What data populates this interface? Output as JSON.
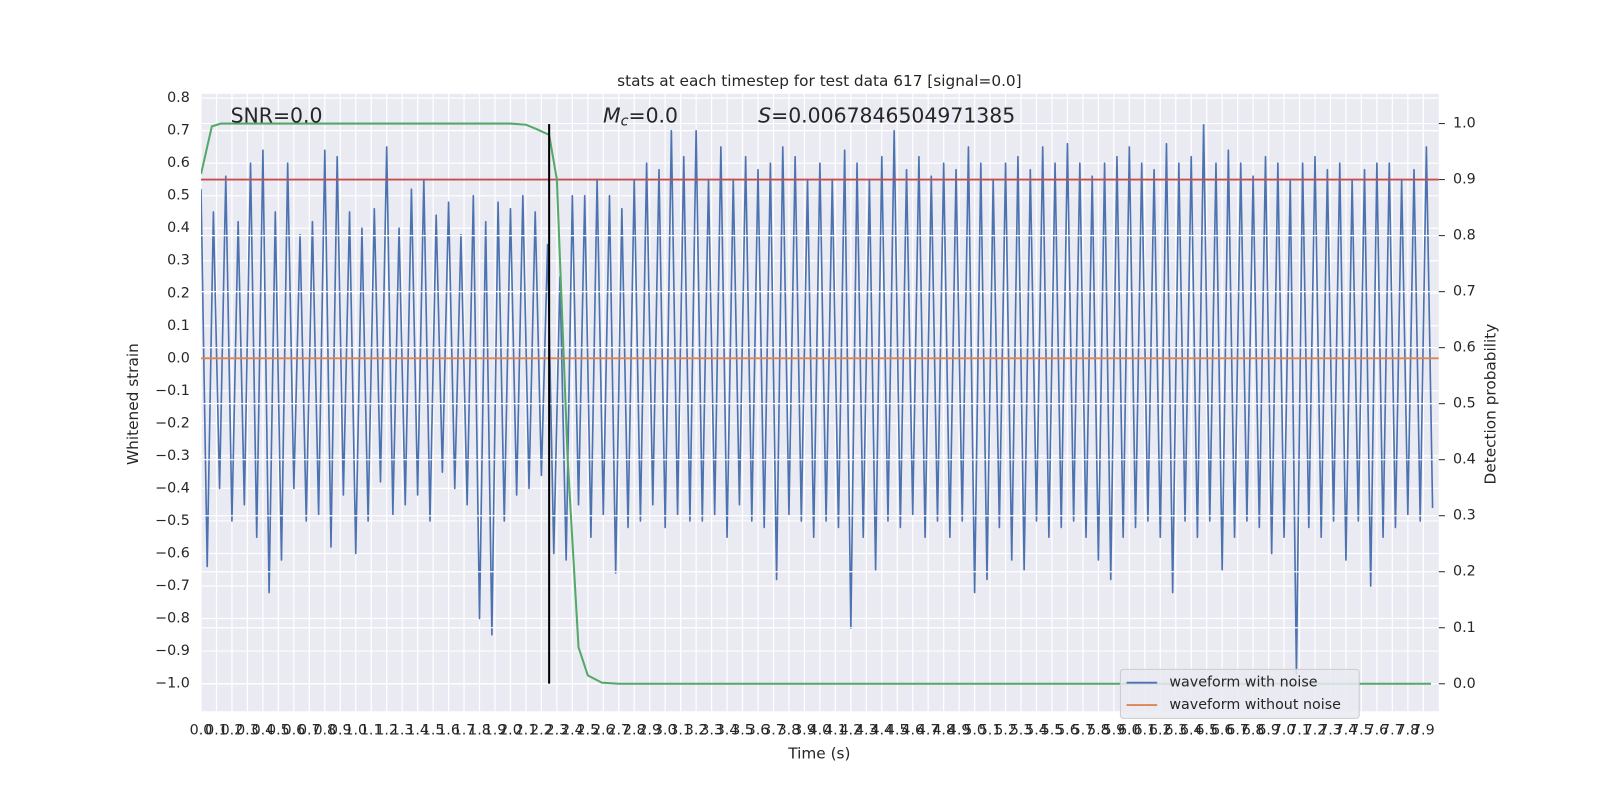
{
  "chart_data": {
    "type": "line",
    "title": "stats at each timestep for test data 617 [signal=0.0]",
    "xlabel": "Time (s)",
    "ylabel": "Whitened strain",
    "y2label": "Detection probability",
    "annotations": [
      {
        "text": "SNR=0.0"
      },
      {
        "symbol": "M",
        "subscript": "c",
        "text": "=0.0"
      },
      {
        "symbol": "S",
        "text": "=0.0067846504971385"
      }
    ],
    "grid": true,
    "y2grid": true,
    "legend": "lower right",
    "xlim": [
      0,
      8.0
    ],
    "ylim": [
      -1.085,
      0.813
    ],
    "y2lim": [
      -0.049,
      1.053
    ],
    "xticks": [
      {
        "value": 0,
        "label": "0.0"
      },
      0.1,
      0.2,
      0.3,
      0.4,
      0.5,
      0.6,
      0.7,
      0.8,
      0.9,
      {
        "value": 1,
        "label": "1.0"
      },
      1.1,
      1.2,
      1.3,
      1.4,
      1.5,
      1.6,
      1.7,
      1.8,
      1.9,
      {
        "value": 2,
        "label": "2.0"
      },
      2.1,
      2.2,
      2.3,
      2.4,
      2.5,
      2.6,
      2.7,
      2.8,
      2.9,
      {
        "value": 3,
        "label": "3.0"
      },
      3.1,
      3.2,
      3.3,
      3.4,
      3.5,
      3.6,
      3.7,
      3.8,
      3.9,
      {
        "value": 4,
        "label": "4.0"
      },
      4.1,
      4.2,
      4.3,
      4.4,
      4.5,
      4.6,
      4.7,
      4.8,
      4.9,
      {
        "value": 5,
        "label": "5.0"
      },
      5.1,
      5.2,
      5.3,
      5.4,
      5.5,
      5.6,
      5.7,
      5.8,
      5.9,
      {
        "value": 6,
        "label": "6.0"
      },
      6.1,
      6.2,
      6.3,
      6.4,
      6.5,
      6.6,
      6.7,
      6.8,
      6.9,
      {
        "value": 7,
        "label": "7.0"
      },
      7.1,
      7.2,
      7.3,
      7.4,
      7.5,
      7.6,
      7.7,
      7.8,
      7.9
    ],
    "yticks": [
      {
        "value": -1,
        "label": "−1.0"
      },
      {
        "value": -0.9,
        "label": "−0.9"
      },
      {
        "value": -0.8,
        "label": "−0.8"
      },
      {
        "value": -0.7,
        "label": "−0.7"
      },
      {
        "value": -0.6,
        "label": "−0.6"
      },
      {
        "value": -0.5,
        "label": "−0.5"
      },
      {
        "value": -0.4,
        "label": "−0.4"
      },
      {
        "value": -0.3,
        "label": "−0.3"
      },
      {
        "value": -0.2,
        "label": "−0.2"
      },
      {
        "value": -0.1,
        "label": "−0.1"
      },
      {
        "value": 0,
        "label": "0.0"
      },
      0.1,
      0.2,
      0.3,
      0.4,
      0.5,
      0.6,
      0.7,
      0.8
    ],
    "y2ticks": [
      {
        "value": 0,
        "label": "0.0"
      },
      0.1,
      0.2,
      0.3,
      0.4,
      0.5,
      0.6,
      0.7,
      0.8,
      0.9,
      {
        "value": 1,
        "label": "1.0"
      }
    ],
    "series": [
      {
        "name": "waveform with noise",
        "color": "#4c72b0",
        "x": [
          0,
          0.04,
          0.08,
          0.12,
          0.16,
          0.2,
          0.24,
          0.28,
          0.32,
          0.36,
          0.4,
          0.44,
          0.48,
          0.52,
          0.56,
          0.6,
          0.64,
          0.68,
          0.72,
          0.76,
          0.8,
          0.84,
          0.88,
          0.92,
          0.96,
          1,
          1.04,
          1.08,
          1.12,
          1.16,
          1.2,
          1.24,
          1.28,
          1.32,
          1.36,
          1.4,
          1.44,
          1.48,
          1.52,
          1.56,
          1.6,
          1.64,
          1.68,
          1.72,
          1.76,
          1.8,
          1.84,
          1.88,
          1.92,
          1.96,
          2,
          2.04,
          2.08,
          2.12,
          2.16,
          2.2,
          2.24,
          2.28,
          2.32,
          2.36,
          2.4,
          2.44,
          2.48,
          2.52,
          2.56,
          2.6,
          2.64,
          2.68,
          2.72,
          2.76,
          2.8,
          2.84,
          2.88,
          2.92,
          2.96,
          3,
          3.04,
          3.08,
          3.12,
          3.16,
          3.2,
          3.24,
          3.28,
          3.32,
          3.36,
          3.4,
          3.44,
          3.48,
          3.52,
          3.56,
          3.6,
          3.64,
          3.68,
          3.72,
          3.76,
          3.8,
          3.84,
          3.88,
          3.92,
          3.96,
          4,
          4.04,
          4.08,
          4.12,
          4.16,
          4.2,
          4.24,
          4.28,
          4.32,
          4.36,
          4.4,
          4.44,
          4.48,
          4.52,
          4.56,
          4.6,
          4.64,
          4.68,
          4.72,
          4.76,
          4.8,
          4.84,
          4.88,
          4.92,
          4.96,
          5,
          5.04,
          5.08,
          5.12,
          5.16,
          5.2,
          5.24,
          5.28,
          5.32,
          5.36,
          5.4,
          5.44,
          5.48,
          5.52,
          5.56,
          5.6,
          5.64,
          5.68,
          5.72,
          5.76,
          5.8,
          5.84,
          5.88,
          5.92,
          5.96,
          6,
          6.04,
          6.08,
          6.12,
          6.16,
          6.2,
          6.24,
          6.28,
          6.32,
          6.36,
          6.4,
          6.44,
          6.48,
          6.52,
          6.56,
          6.6,
          6.64,
          6.68,
          6.72,
          6.76,
          6.8,
          6.84,
          6.88,
          6.92,
          6.96,
          7,
          7.04,
          7.08,
          7.12,
          7.16,
          7.2,
          7.24,
          7.28,
          7.32,
          7.36,
          7.4,
          7.44,
          7.48,
          7.52,
          7.56,
          7.6,
          7.64,
          7.68,
          7.72,
          7.76,
          7.8,
          7.84,
          7.88,
          7.92,
          7.96
        ],
        "values": [
          0.52,
          -0.64,
          0.45,
          -0.4,
          0.56,
          -0.5,
          0.42,
          -0.45,
          0.6,
          -0.55,
          0.64,
          -0.72,
          0.45,
          -0.62,
          0.6,
          -0.4,
          0.38,
          -0.5,
          0.42,
          -0.48,
          0.64,
          -0.58,
          0.62,
          -0.42,
          0.45,
          -0.6,
          0.4,
          -0.5,
          0.46,
          -0.38,
          0.65,
          -0.48,
          0.4,
          -0.45,
          0.52,
          -0.42,
          0.55,
          -0.5,
          0.44,
          -0.35,
          0.48,
          -0.4,
          0.38,
          -0.45,
          0.5,
          -0.8,
          0.42,
          -0.85,
          0.48,
          -0.5,
          0.46,
          -0.42,
          0.5,
          -0.4,
          0.45,
          -0.36,
          0.35,
          -0.6,
          0.25,
          -0.62,
          0.5,
          -0.45,
          0.5,
          -0.55,
          0.55,
          -0.48,
          0.5,
          -0.66,
          0.46,
          -0.52,
          0.55,
          -0.5,
          0.6,
          -0.45,
          0.58,
          -0.52,
          0.7,
          -0.48,
          0.62,
          -0.5,
          0.7,
          -0.5,
          0.55,
          -0.48,
          0.65,
          -0.55,
          0.55,
          -0.45,
          0.62,
          -0.5,
          0.58,
          -0.52,
          0.6,
          -0.68,
          0.65,
          -0.48,
          0.62,
          -0.5,
          0.55,
          -0.55,
          0.6,
          -0.5,
          0.55,
          -0.52,
          0.64,
          -0.83,
          0.6,
          -0.55,
          0.55,
          -0.65,
          0.62,
          -0.5,
          0.7,
          -0.52,
          0.58,
          -0.48,
          0.62,
          -0.55,
          0.56,
          -0.5,
          0.6,
          -0.55,
          0.58,
          -0.5,
          0.65,
          -0.72,
          0.6,
          -0.68,
          0.55,
          -0.52,
          0.6,
          -0.62,
          0.62,
          -0.65,
          0.58,
          -0.5,
          0.65,
          -0.55,
          0.6,
          -0.52,
          0.66,
          -0.5,
          0.6,
          -0.55,
          0.56,
          -0.62,
          0.6,
          -0.68,
          0.62,
          -0.55,
          0.65,
          -0.52,
          0.6,
          -0.5,
          0.58,
          -0.55,
          0.66,
          -0.72,
          0.6,
          -0.5,
          0.62,
          -0.55,
          0.72,
          -0.5,
          0.6,
          -0.65,
          0.64,
          -0.55,
          0.6,
          -0.5,
          0.56,
          -0.52,
          0.62,
          -0.6,
          0.6,
          -0.55,
          0.55,
          -0.97,
          0.6,
          -0.52,
          0.62,
          -0.55,
          0.58,
          -0.5,
          0.6,
          -0.62,
          0.55,
          -0.5,
          0.58,
          -0.7,
          0.6,
          -0.55,
          0.6,
          -0.52,
          0.55,
          -0.48,
          0.58,
          -0.5,
          0.65,
          -0.46
        ]
      },
      {
        "name": "waveform without noise",
        "color": "#dd8452",
        "x": [
          0,
          8.0
        ],
        "values": [
          0,
          0
        ]
      }
    ],
    "detection_probability": {
      "color": "#55a868",
      "axis": "y2",
      "x": [
        0,
        0.07,
        0.13,
        0.2,
        1.0,
        2.0,
        2.1,
        2.17,
        2.25,
        2.3,
        2.37,
        2.44,
        2.5,
        2.59,
        2.7,
        7.95
      ],
      "values": [
        0.91,
        0.995,
        1.0,
        1.0,
        1.0,
        1.0,
        0.998,
        0.99,
        0.98,
        0.9,
        0.4,
        0.065,
        0.015,
        0.002,
        0,
        0
      ]
    },
    "hline": {
      "y": 0.9,
      "axis": "y2",
      "color": "#c44e52"
    },
    "vline": {
      "x": 2.25,
      "ymin": -1.0,
      "ymax": 0.72,
      "color": "#000000"
    }
  }
}
